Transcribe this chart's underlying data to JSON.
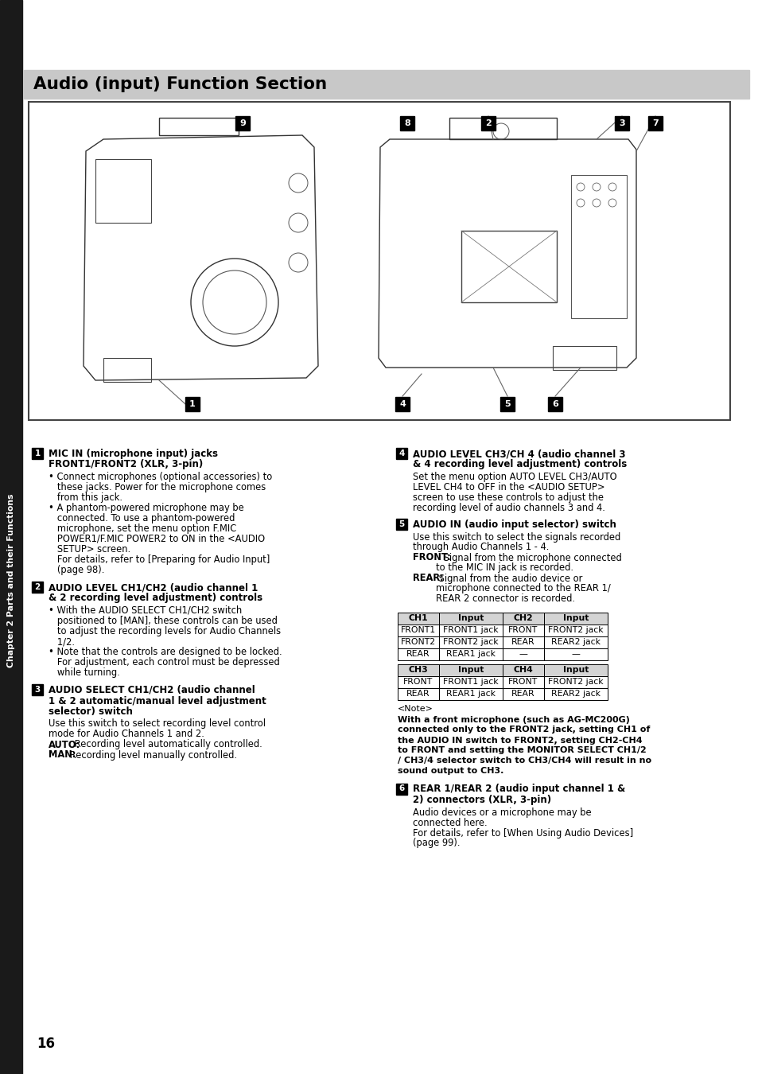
{
  "title": "Audio (input) Function Section",
  "title_bg": "#c8c8c8",
  "page_bg": "#ffffff",
  "sidebar_text": "Chapter 2 Parts and their Functions",
  "sidebar_bg": "#1a1a1a",
  "image_border": "#333333",
  "section1_items": [
    {
      "num": "1",
      "heading_lines": [
        "MIC IN (microphone input) jacks",
        "FRONT1/FRONT2 (XLR, 3-pin)"
      ],
      "body_parts": [
        {
          "bold": false,
          "text": "• Connect microphones (optional accessories) to\n   these jacks. Power for the microphone comes\n   from this jack."
        },
        {
          "bold": false,
          "text": "• A phantom-powered microphone may be\n   connected. To use a phantom-powered\n   microphone, set the menu option F.MIC\n   POWER1/F.MIC POWER2 to ON in the <AUDIO\n   SETUP> screen."
        },
        {
          "bold": false,
          "text": "   For details, refer to [Preparing for Audio Input]\n   (page 98)."
        }
      ]
    },
    {
      "num": "2",
      "heading_lines": [
        "AUDIO LEVEL CH1/CH2 (audio channel 1",
        "& 2 recording level adjustment) controls"
      ],
      "body_parts": [
        {
          "bold": false,
          "text": "• With the AUDIO SELECT CH1/CH2 switch\n   positioned to [MAN], these controls can be used\n   to adjust the recording levels for Audio Channels\n   1/2."
        },
        {
          "bold": false,
          "text": "• Note that the controls are designed to be locked.\n   For adjustment, each control must be depressed\n   while turning."
        }
      ]
    },
    {
      "num": "3",
      "heading_lines": [
        "AUDIO SELECT CH1/CH2 (audio channel",
        "1 & 2 automatic/manual level adjustment",
        "selector) switch"
      ],
      "body_parts": [
        {
          "bold": false,
          "text": "Use this switch to select recording level control\nmode for Audio Channels 1 and 2."
        },
        {
          "bold": true,
          "prefix": "AUTO:",
          "text": " Recording level automatically controlled."
        },
        {
          "bold": true,
          "prefix": "MAN:",
          "text": " Recording level manually controlled."
        }
      ]
    }
  ],
  "section2_items": [
    {
      "num": "4",
      "heading_lines": [
        "AUDIO LEVEL CH3/CH 4 (audio channel 3",
        "& 4 recording level adjustment) controls"
      ],
      "body_parts": [
        {
          "bold": false,
          "text": "Set the menu option AUTO LEVEL CH3/AUTO\nLEVEL CH4 to OFF in the <AUDIO SETUP>\nscreen to use these controls to adjust the\nrecording level of audio channels 3 and 4."
        }
      ]
    },
    {
      "num": "5",
      "heading_lines": [
        "AUDIO IN (audio input selector) switch"
      ],
      "body_parts": [
        {
          "bold": false,
          "text": "Use this switch to select the signals recorded\nthrough Audio Channels 1 - 4."
        },
        {
          "bold": true,
          "prefix": "FRONT:",
          "text": " Signal from the microphone connected\n        to the MIC IN jack is recorded."
        },
        {
          "bold": true,
          "prefix": "REAR:",
          "text": " Signal from the audio device or\n        microphone connected to the REAR 1/\n        REAR 2 connector is recorded."
        }
      ]
    },
    {
      "num": "6",
      "heading_lines": [
        "REAR 1/REAR 2 (audio input channel 1 &",
        "2) connectors (XLR, 3-pin)"
      ],
      "body_parts": [
        {
          "bold": false,
          "text": "Audio devices or a microphone may be\nconnected here.\nFor details, refer to [When Using Audio Devices]\n(page 99)."
        }
      ]
    }
  ],
  "table1_headers": [
    "CH1",
    "Input",
    "CH2",
    "Input"
  ],
  "table1_rows": [
    [
      "FRONT1",
      "FRONT1 jack",
      "FRONT",
      "FRONT2 jack"
    ],
    [
      "FRONT2",
      "FRONT2 jack",
      "REAR",
      "REAR2 jack"
    ],
    [
      "REAR",
      "REAR1 jack",
      "—",
      "—"
    ]
  ],
  "table2_headers": [
    "CH3",
    "Input",
    "CH4",
    "Input"
  ],
  "table2_rows": [
    [
      "FRONT",
      "FRONT1 jack",
      "FRONT",
      "FRONT2 jack"
    ],
    [
      "REAR",
      "REAR1 jack",
      "REAR",
      "REAR2 jack"
    ]
  ],
  "note_label": "<Note>",
  "note_body": "With a front microphone (such as AG-MC200G)\nconnected only to the FRONT2 jack, setting CH1 of\nthe AUDIO IN switch to FRONT2, setting CH2-CH4\nto FRONT and setting the MONITOR SELECT CH1/2\n/ CH3/4 selector switch to CH3/CH4 will result in no\nsound output to CH3.",
  "page_num": "16",
  "img_nums_left": [
    [
      "9",
      305,
      155
    ],
    [
      "1",
      242,
      508
    ]
  ],
  "img_nums_right": [
    [
      "8",
      512,
      155
    ],
    [
      "2",
      614,
      155
    ],
    [
      "3",
      782,
      155
    ],
    [
      "7",
      824,
      155
    ],
    [
      "4",
      506,
      508
    ],
    [
      "5",
      638,
      508
    ],
    [
      "6",
      698,
      508
    ]
  ]
}
